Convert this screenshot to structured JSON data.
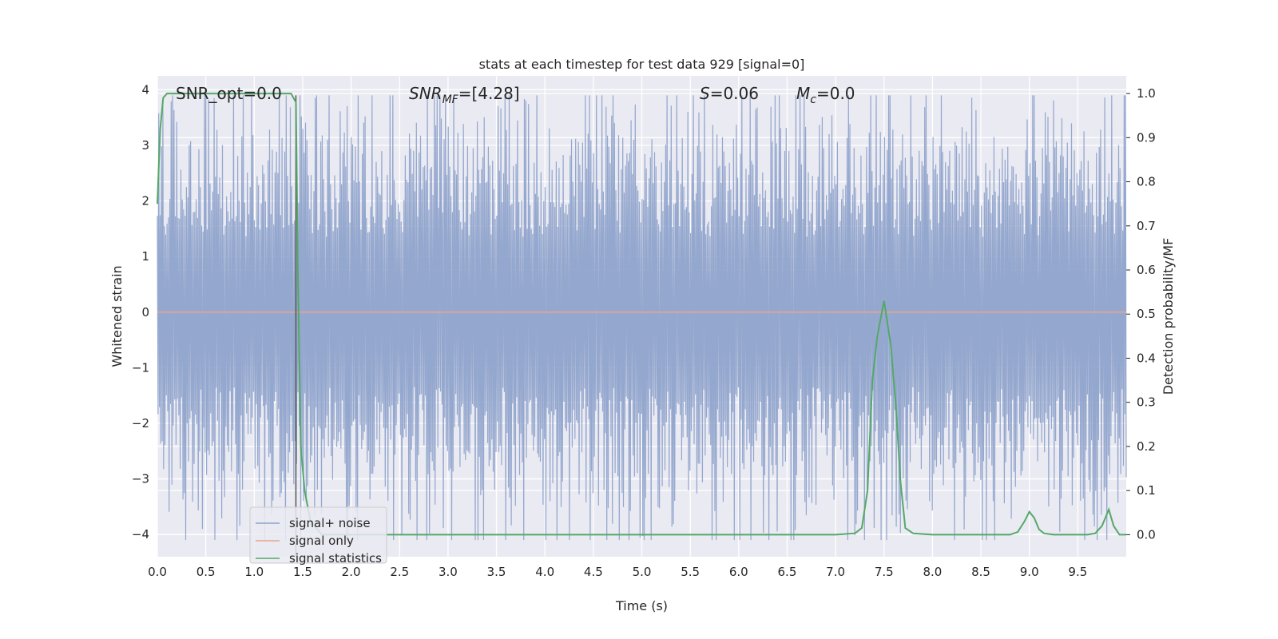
{
  "chart_data": {
    "type": "line",
    "title": "stats at each timestep for test data 929 [signal=0]",
    "xlabel": "Time (s)",
    "ylabel_left": "Whitened strain",
    "ylabel_right": "Detection probability/MF",
    "xlim": [
      0.0,
      10.0
    ],
    "ylim_left": [
      -4.4,
      4.25
    ],
    "ylim_right": [
      -0.05,
      1.04
    ],
    "x_ticks": [
      "0.0",
      "0.5",
      "1.0",
      "1.5",
      "2.0",
      "2.5",
      "3.0",
      "3.5",
      "4.0",
      "4.5",
      "5.0",
      "5.5",
      "6.0",
      "6.5",
      "7.0",
      "7.5",
      "8.0",
      "8.5",
      "9.0",
      "9.5"
    ],
    "y_ticks_left": [
      "4",
      "3",
      "2",
      "1",
      "0",
      "−1",
      "−2",
      "−3",
      "−4"
    ],
    "y_ticks_right": [
      "1.0",
      "0.9",
      "0.8",
      "0.7",
      "0.6",
      "0.5",
      "0.4",
      "0.3",
      "0.2",
      "0.1",
      "0.0"
    ],
    "grid": true,
    "legend_position": "lower-left",
    "annotations": {
      "snr_opt": "SNR_opt=0.0",
      "snr_mf_main": "SNR",
      "snr_mf_sub": "MF",
      "snr_mf_value": "=[4.28]",
      "s_symbol": "S",
      "s_value": "=0.06",
      "mc_symbol": "M",
      "mc_sub": "c",
      "mc_value": "=0.0"
    },
    "vertical_marker_x": 1.43,
    "series": [
      {
        "name": "signal+ noise",
        "color": "#8fa3cb",
        "axis": "left",
        "style": "dense-noise",
        "x_range": [
          0.0,
          10.0
        ],
        "sample_count": 1400,
        "typical_amplitude": 1.5,
        "peak_max": 3.9,
        "peak_min": -4.1
      },
      {
        "name": "signal only",
        "color": "#e8a48a",
        "axis": "left",
        "x": [
          0.0,
          10.0
        ],
        "y": [
          0.0,
          0.0
        ]
      },
      {
        "name": "signal statistics",
        "color": "#55a868",
        "axis": "right",
        "x": [
          0.0,
          0.03,
          0.06,
          0.1,
          0.2,
          0.5,
          1.0,
          1.3,
          1.38,
          1.43,
          1.45,
          1.48,
          1.52,
          1.58,
          1.7,
          2.0,
          3.0,
          4.0,
          5.0,
          6.0,
          7.0,
          7.2,
          7.27,
          7.33,
          7.38,
          7.43,
          7.5,
          7.57,
          7.62,
          7.67,
          7.72,
          7.8,
          8.0,
          8.5,
          8.8,
          8.88,
          8.95,
          9.0,
          9.05,
          9.1,
          9.15,
          9.25,
          9.6,
          9.68,
          9.75,
          9.82,
          9.87,
          9.93,
          10.0
        ],
        "y": [
          0.75,
          0.92,
          0.99,
          1.0,
          1.0,
          1.0,
          1.0,
          1.0,
          1.0,
          0.98,
          0.6,
          0.2,
          0.1,
          0.03,
          0.0,
          0.0,
          0.0,
          0.0,
          0.0,
          0.0,
          0.0,
          0.003,
          0.015,
          0.1,
          0.35,
          0.45,
          0.53,
          0.43,
          0.3,
          0.12,
          0.015,
          0.003,
          0.0,
          0.0,
          0.0,
          0.006,
          0.03,
          0.052,
          0.038,
          0.012,
          0.003,
          0.0,
          0.0,
          0.003,
          0.02,
          0.057,
          0.02,
          0.0,
          0.0
        ]
      }
    ]
  }
}
